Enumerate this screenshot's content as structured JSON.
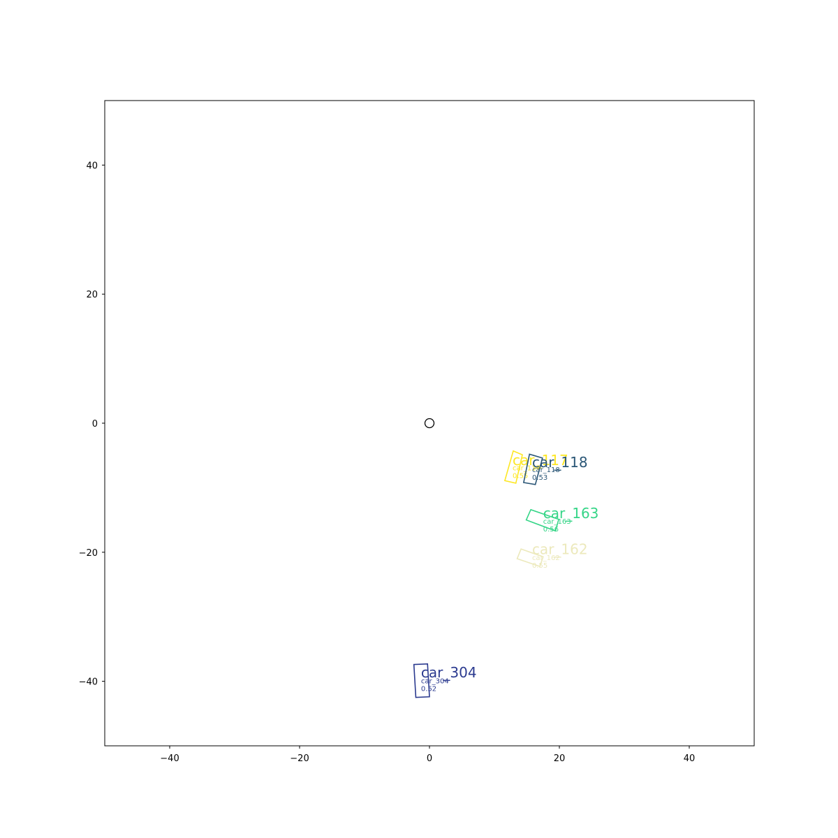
{
  "chart_data": {
    "type": "scatter",
    "title": "",
    "xlabel": "",
    "ylabel": "",
    "xlim": [
      -50,
      50
    ],
    "ylim": [
      -50,
      50
    ],
    "grid": false,
    "x_ticks": [
      -40,
      -20,
      0,
      20,
      40
    ],
    "y_ticks": [
      -40,
      -20,
      0,
      20,
      40
    ],
    "ego": {
      "x": 0,
      "y": 0,
      "marker": "circle"
    },
    "objects": [
      {
        "label": "car_117",
        "id_text": "car_117",
        "score": "0.55",
        "color": "#fde725",
        "corners": [
          [
            12.9,
            -4.3
          ],
          [
            14.3,
            -4.9
          ],
          [
            13.3,
            -9.3
          ],
          [
            11.6,
            -8.9
          ]
        ],
        "label_pos": [
          12.8,
          -6.5
        ],
        "sub_pos": [
          12.8,
          -7.3
        ]
      },
      {
        "label": "car_118",
        "id_text": "car_118",
        "score": "0.53",
        "color": "#2a5676",
        "corners": [
          [
            15.4,
            -4.8
          ],
          [
            17.4,
            -5.4
          ],
          [
            16.3,
            -9.5
          ],
          [
            14.5,
            -9.2
          ]
        ],
        "label_pos": [
          15.8,
          -6.8
        ],
        "sub_pos": [
          15.8,
          -7.6
        ]
      },
      {
        "label": "car_163",
        "id_text": "car_163",
        "score": "0.56",
        "color": "#35d587",
        "corners": [
          [
            15.6,
            -13.4
          ],
          [
            19.9,
            -14.9
          ],
          [
            19.4,
            -16.7
          ],
          [
            14.9,
            -15.0
          ]
        ],
        "label_pos": [
          17.5,
          -14.7
        ],
        "sub_pos": [
          17.5,
          -15.6
        ]
      },
      {
        "label": "car_162",
        "id_text": "car_162",
        "score": "0.55",
        "color": "#ece9bc",
        "corners": [
          [
            14.1,
            -19.5
          ],
          [
            17.5,
            -20.7
          ],
          [
            17.0,
            -22.2
          ],
          [
            13.5,
            -21.0
          ]
        ],
        "label_pos": [
          15.8,
          -20.3
        ],
        "sub_pos": [
          15.8,
          -21.2
        ]
      },
      {
        "label": "car_304",
        "id_text": "car_304",
        "score": "0.52",
        "color": "#2b3a8f",
        "corners": [
          [
            -2.4,
            -37.4
          ],
          [
            -0.3,
            -37.3
          ],
          [
            0.0,
            -42.4
          ],
          [
            -2.1,
            -42.5
          ]
        ],
        "label_pos": [
          -1.3,
          -39.4
        ],
        "sub_pos": [
          -1.3,
          -40.3
        ]
      }
    ]
  }
}
